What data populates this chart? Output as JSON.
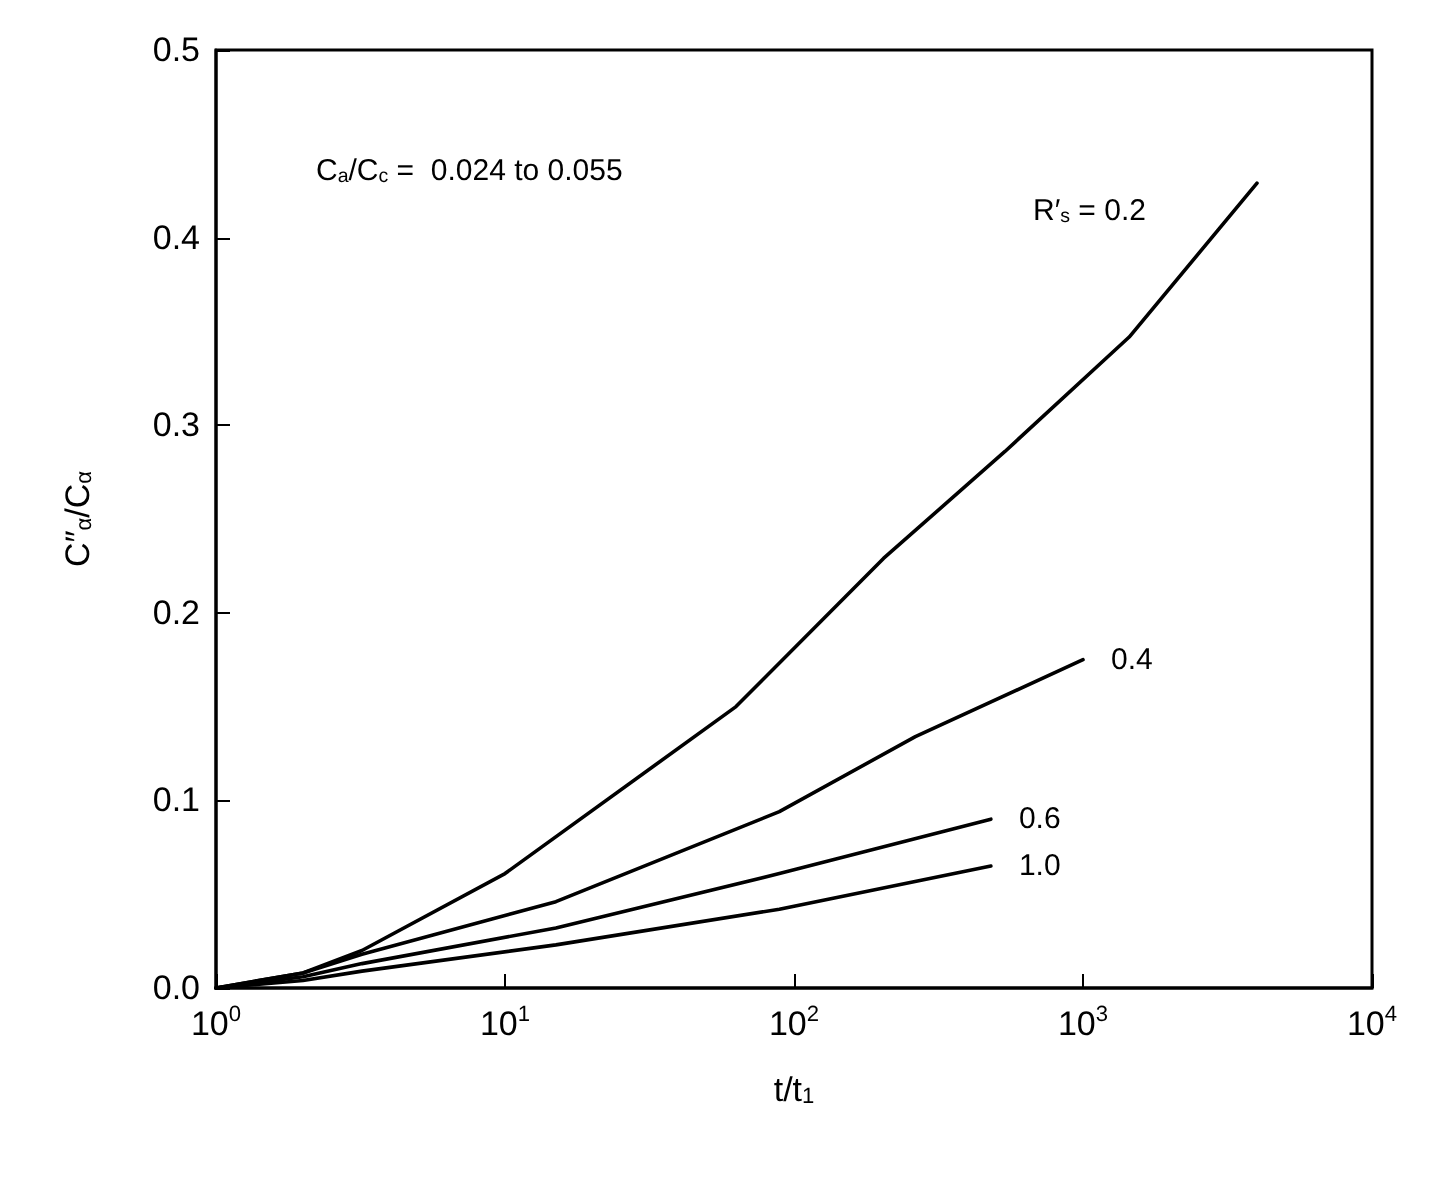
{
  "chart_data": {
    "type": "line",
    "xlabel": "t/t$_{1}$",
    "ylabel": "C″$_{α}$/C$_{α}$",
    "log": "x",
    "grid": false,
    "legend": false,
    "marker": "none",
    "line_style": "solid",
    "xlim": [
      1,
      10000
    ],
    "xticks": [
      {
        "value": 1,
        "label": "10$^{0}$"
      },
      {
        "value": 10,
        "label": "10$^{1}$"
      },
      {
        "value": 100,
        "label": "10$^{2}$"
      },
      {
        "value": 1000,
        "label": "10$^{3}$"
      },
      {
        "value": 10000,
        "label": "10$^{4}$"
      }
    ],
    "ylim": [
      0,
      0.5
    ],
    "yticks": [
      {
        "value": 0,
        "label": "0.0"
      },
      0.1,
      0.2,
      0.3,
      0.4,
      0.5
    ],
    "annotations": [
      "C$_{a}$/C$_{c}$ =  0.024 to 0.055"
    ],
    "series": [
      {
        "name": "R′$_{s}$ = 0.2",
        "color": "#000000",
        "x": [
          1,
          2,
          3.2,
          10,
          63,
          204,
          537,
          1445,
          4000
        ],
        "values": [
          0,
          0.008,
          0.02,
          0.061,
          0.15,
          0.229,
          0.286,
          0.347,
          0.429
        ]
      },
      {
        "name": "0.4",
        "color": "#000000",
        "x": [
          1,
          2,
          3.2,
          15,
          89,
          263,
          1000
        ],
        "values": [
          0,
          0.008,
          0.018,
          0.046,
          0.094,
          0.134,
          0.175
        ]
      },
      {
        "name": "0.6",
        "color": "#000000",
        "x": [
          1,
          2,
          3.2,
          15,
          89,
          480
        ],
        "values": [
          0,
          0.006,
          0.013,
          0.032,
          0.061,
          0.09
        ]
      },
      {
        "name": "1.0",
        "color": "#000000",
        "x": [
          1,
          2,
          3.2,
          15,
          89,
          480
        ],
        "values": [
          0,
          0.004,
          0.009,
          0.023,
          0.042,
          0.065
        ]
      }
    ]
  }
}
